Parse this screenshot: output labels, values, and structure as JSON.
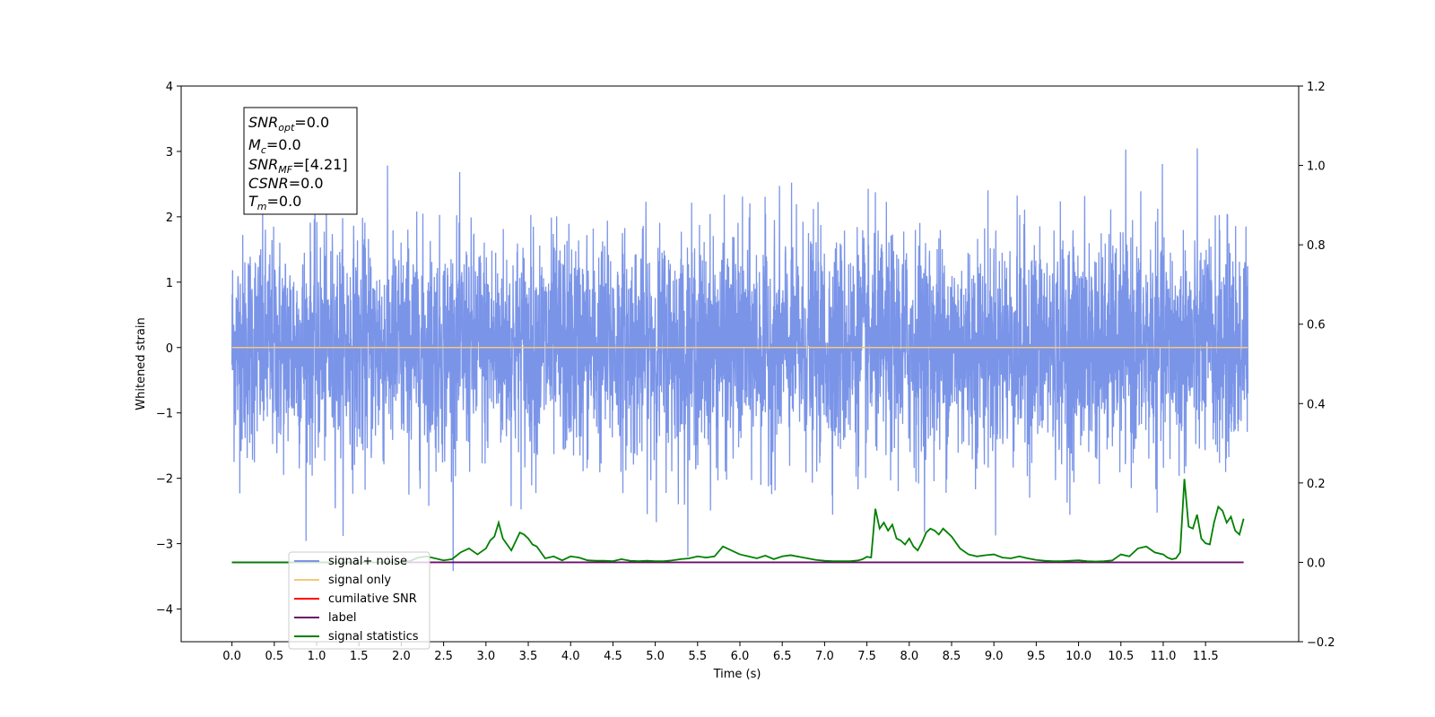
{
  "chart_data": {
    "type": "line",
    "xlabel": "Time (s)",
    "ylabel": "Whitened strain",
    "xlim": [
      -0.6,
      12.6
    ],
    "ylim": [
      -4.5,
      4.0
    ],
    "y2lim": [
      -0.2,
      1.2
    ],
    "x_ticks": [
      "0.0",
      "0.5",
      "1.0",
      "1.5",
      "2.0",
      "2.5",
      "3.0",
      "3.5",
      "4.0",
      "4.5",
      "5.0",
      "5.5",
      "6.0",
      "6.5",
      "7.0",
      "7.5",
      "8.0",
      "8.5",
      "9.0",
      "9.5",
      "10.0",
      "10.5",
      "11.0",
      "11.5"
    ],
    "y_ticks": [
      "4",
      "3",
      "2",
      "1",
      "0",
      "−1",
      "−2",
      "−3",
      "−4"
    ],
    "y2_ticks": [
      "1.2",
      "1.0",
      "0.8",
      "0.6",
      "0.4",
      "0.2",
      "0.0",
      "−0.2"
    ],
    "grid": false,
    "legend_placement": "lower-left",
    "info_box": {
      "snr_opt": {
        "sym": "SNR",
        "sub": "opt",
        "val": "=0.0"
      },
      "mc": {
        "sym": "M",
        "sub": "c",
        "val": "=0.0"
      },
      "snr_mf": {
        "sym": "SNR",
        "sub": "MF",
        "val": "=[4.21]"
      },
      "csnr": {
        "sym": "CSNR",
        "sub": "",
        "val": "=0.0"
      },
      "tm": {
        "sym": "T",
        "sub": "m",
        "val": "=0.0"
      }
    },
    "series": [
      {
        "name": "signal+ noise",
        "color": "#7a94e8",
        "axis": "left",
        "noise_sigma": 0.85,
        "t_start": 0.0,
        "t_end": 12.0
      },
      {
        "name": "signal only",
        "color": "#f5c87a",
        "axis": "left",
        "value": 0.0
      },
      {
        "name": "cumilative SNR",
        "color": "#ff0000",
        "axis": "left"
      },
      {
        "name": "label",
        "color": "#6a0f6a",
        "axis": "right",
        "value": 0.0
      },
      {
        "name": "signal statistics",
        "color": "#008000",
        "axis": "right",
        "x": [
          0.0,
          0.25,
          0.5,
          0.75,
          1.0,
          1.25,
          1.5,
          1.75,
          2.0,
          2.1,
          2.2,
          2.3,
          2.4,
          2.5,
          2.6,
          2.7,
          2.8,
          2.9,
          3.0,
          3.05,
          3.1,
          3.15,
          3.2,
          3.3,
          3.4,
          3.45,
          3.5,
          3.55,
          3.6,
          3.65,
          3.7,
          3.8,
          3.9,
          4.0,
          4.1,
          4.2,
          4.3,
          4.4,
          4.5,
          4.6,
          4.7,
          4.8,
          4.9,
          5.0,
          5.1,
          5.2,
          5.3,
          5.4,
          5.5,
          5.6,
          5.7,
          5.8,
          5.85,
          5.9,
          6.0,
          6.1,
          6.2,
          6.3,
          6.4,
          6.5,
          6.6,
          6.7,
          6.8,
          6.9,
          7.0,
          7.1,
          7.2,
          7.3,
          7.4,
          7.45,
          7.5,
          7.55,
          7.6,
          7.65,
          7.7,
          7.75,
          7.8,
          7.85,
          7.9,
          7.95,
          8.0,
          8.05,
          8.1,
          8.15,
          8.2,
          8.25,
          8.3,
          8.35,
          8.4,
          8.5,
          8.6,
          8.7,
          8.8,
          8.9,
          9.0,
          9.1,
          9.2,
          9.3,
          9.4,
          9.5,
          9.6,
          9.7,
          9.8,
          9.9,
          10.0,
          10.1,
          10.2,
          10.3,
          10.4,
          10.5,
          10.6,
          10.65,
          10.7,
          10.8,
          10.9,
          11.0,
          11.05,
          11.1,
          11.15,
          11.2,
          11.25,
          11.3,
          11.35,
          11.4,
          11.45,
          11.5,
          11.55,
          11.6,
          11.65,
          11.7,
          11.75,
          11.8,
          11.85,
          11.9,
          11.95
        ],
        "y": [
          0.0,
          0.0,
          0.0,
          0.0,
          0.0,
          0.0,
          0.0,
          0.0,
          0.0,
          0.003,
          0.012,
          0.015,
          0.01,
          0.005,
          0.008,
          0.025,
          0.035,
          0.02,
          0.035,
          0.055,
          0.065,
          0.1,
          0.06,
          0.03,
          0.075,
          0.07,
          0.06,
          0.045,
          0.04,
          0.025,
          0.01,
          0.015,
          0.005,
          0.015,
          0.012,
          0.005,
          0.004,
          0.004,
          0.003,
          0.008,
          0.004,
          0.003,
          0.004,
          0.003,
          0.003,
          0.005,
          0.008,
          0.01,
          0.015,
          0.012,
          0.015,
          0.04,
          0.035,
          0.03,
          0.02,
          0.015,
          0.01,
          0.017,
          0.008,
          0.015,
          0.018,
          0.014,
          0.01,
          0.006,
          0.004,
          0.003,
          0.003,
          0.003,
          0.005,
          0.008,
          0.014,
          0.012,
          0.135,
          0.085,
          0.1,
          0.08,
          0.095,
          0.06,
          0.055,
          0.045,
          0.06,
          0.04,
          0.03,
          0.05,
          0.075,
          0.085,
          0.08,
          0.07,
          0.085,
          0.065,
          0.035,
          0.02,
          0.015,
          0.018,
          0.02,
          0.012,
          0.01,
          0.015,
          0.01,
          0.006,
          0.004,
          0.003,
          0.003,
          0.004,
          0.005,
          0.003,
          0.002,
          0.003,
          0.005,
          0.02,
          0.015,
          0.025,
          0.035,
          0.04,
          0.025,
          0.02,
          0.012,
          0.008,
          0.01,
          0.025,
          0.21,
          0.09,
          0.085,
          0.12,
          0.06,
          0.048,
          0.045,
          0.1,
          0.14,
          0.13,
          0.1,
          0.115,
          0.08,
          0.07,
          0.11
        ]
      }
    ]
  }
}
